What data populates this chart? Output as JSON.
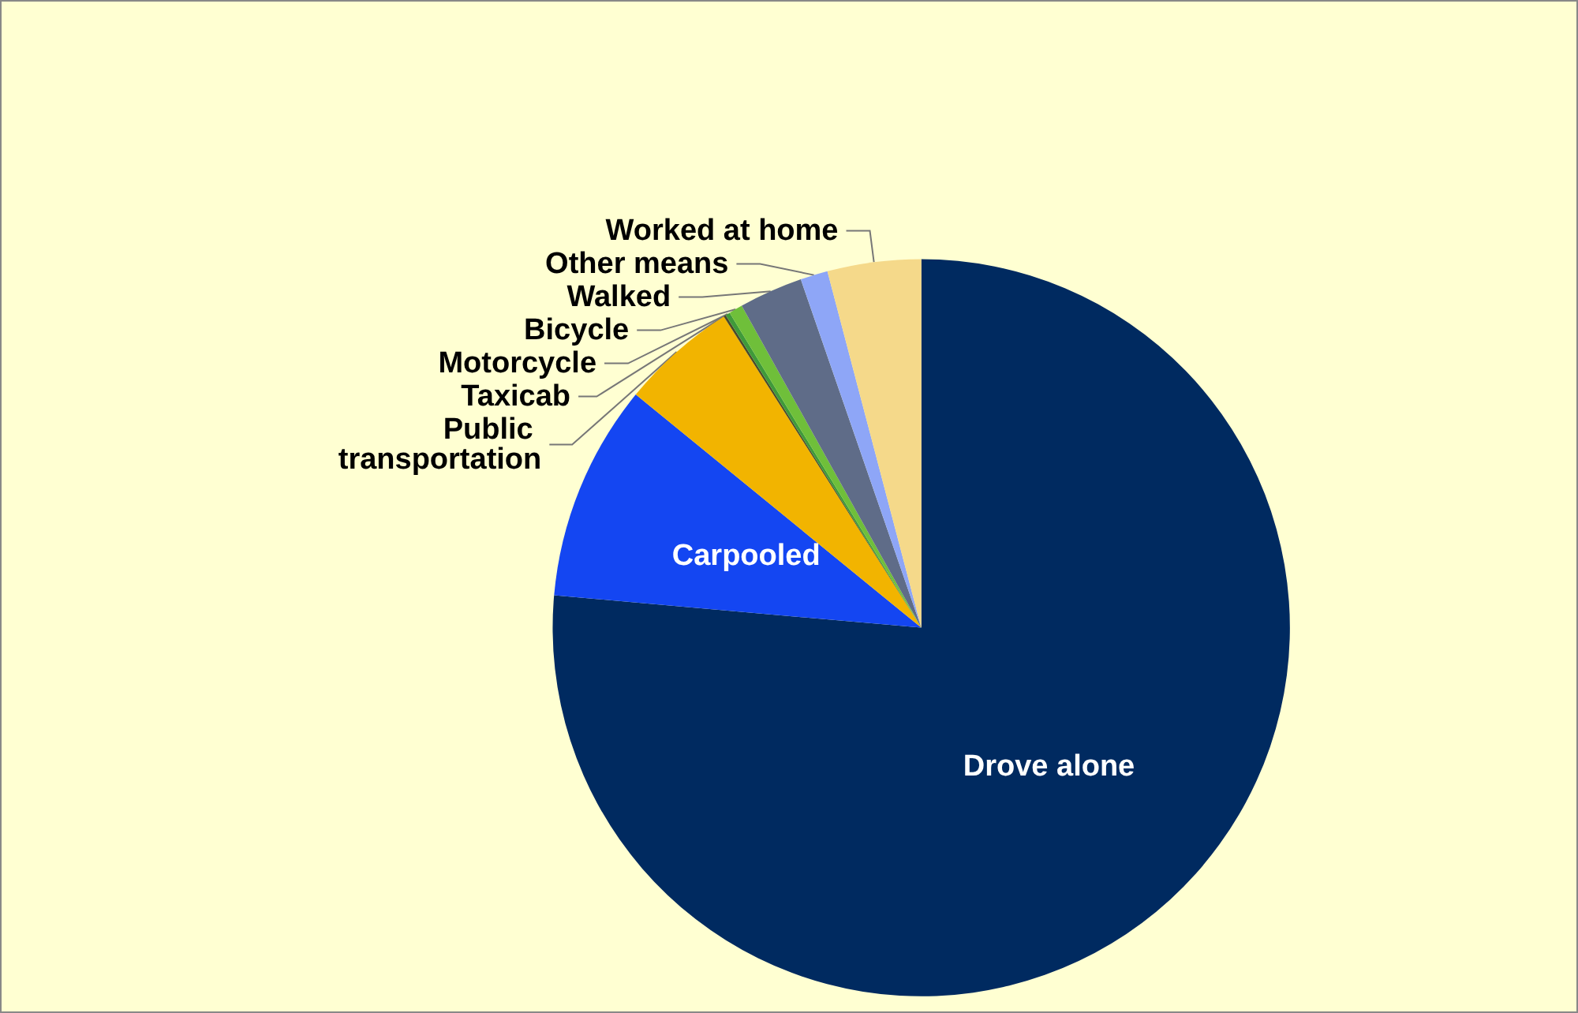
{
  "chart_data": {
    "type": "pie",
    "categories": [
      "Drove alone",
      "Carpooled",
      "Public transportation",
      "Taxicab",
      "Motorcycle",
      "Bicycle",
      "Walked",
      "Other means",
      "Worked at home"
    ],
    "values": [
      76.4,
      9.5,
      5.1,
      0.1,
      0.2,
      0.6,
      2.8,
      1.2,
      4.1
    ],
    "colors": [
      "#002a60",
      "#1446f2",
      "#f2b400",
      "#4a4a2a",
      "#3f9a3a",
      "#6fbf3a",
      "#5f6c88",
      "#8ea6f7",
      "#f5d98a"
    ],
    "legend": false
  }
}
